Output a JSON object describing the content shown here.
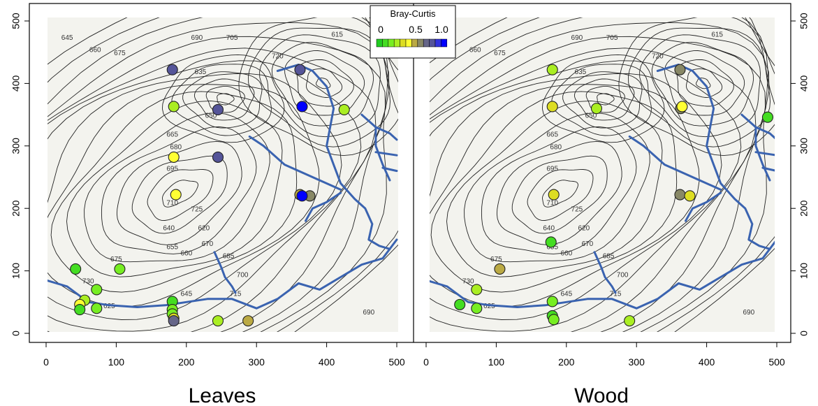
{
  "chart_data": {
    "type": "scatter",
    "legend": {
      "title": "Bray-Curtis",
      "min_label": "0",
      "mid_label": "0.5",
      "max_label": "1.0",
      "placement": "top-center",
      "colors": [
        "#22cc22",
        "#44dd22",
        "#77ee22",
        "#aaee22",
        "#dddd22",
        "#ffff33",
        "#bbaa44",
        "#888866",
        "#666688",
        "#555599",
        "#3333dd",
        "#0000ff"
      ]
    },
    "x_ticks": [
      "0",
      "100",
      "200",
      "300",
      "400",
      "500"
    ],
    "y_ticks": [
      "0",
      "100",
      "200",
      "300",
      "400",
      "500"
    ],
    "xlim": [
      0,
      500
    ],
    "ylim": [
      0,
      500
    ],
    "stream_color": "#3a63b0",
    "contour_labels": [
      "615",
      "620",
      "625",
      "635",
      "640",
      "645",
      "650",
      "655",
      "660",
      "665",
      "670",
      "675",
      "680",
      "685",
      "690",
      "695",
      "700",
      "705",
      "710",
      "715",
      "720",
      "725",
      "730"
    ],
    "panels": [
      {
        "title": "Leaves",
        "points": [
          {
            "x": 180,
            "y": 422,
            "v": 0.8
          },
          {
            "x": 362,
            "y": 422,
            "v": 0.8
          },
          {
            "x": 182,
            "y": 363,
            "v": 0.3
          },
          {
            "x": 245,
            "y": 358,
            "v": 0.8
          },
          {
            "x": 365,
            "y": 363,
            "v": 1.0
          },
          {
            "x": 425,
            "y": 358,
            "v": 0.25
          },
          {
            "x": 182,
            "y": 282,
            "v": 0.45
          },
          {
            "x": 245,
            "y": 282,
            "v": 0.8
          },
          {
            "x": 185,
            "y": 222,
            "v": 0.45
          },
          {
            "x": 362,
            "y": 222,
            "v": 0.55
          },
          {
            "x": 376,
            "y": 220,
            "v": 0.6
          },
          {
            "x": 365,
            "y": 220,
            "v": 1.0
          },
          {
            "x": 42,
            "y": 103,
            "v": 0.1
          },
          {
            "x": 105,
            "y": 103,
            "v": 0.2
          },
          {
            "x": 72,
            "y": 70,
            "v": 0.2
          },
          {
            "x": 55,
            "y": 53,
            "v": 0.3
          },
          {
            "x": 48,
            "y": 46,
            "v": 0.45
          },
          {
            "x": 48,
            "y": 38,
            "v": 0.1
          },
          {
            "x": 72,
            "y": 40,
            "v": 0.2
          },
          {
            "x": 180,
            "y": 51,
            "v": 0.1
          },
          {
            "x": 180,
            "y": 38,
            "v": 0.15
          },
          {
            "x": 180,
            "y": 31,
            "v": 0.2
          },
          {
            "x": 182,
            "y": 24,
            "v": 0.35
          },
          {
            "x": 182,
            "y": 20,
            "v": 0.7
          },
          {
            "x": 245,
            "y": 20,
            "v": 0.3
          },
          {
            "x": 288,
            "y": 20,
            "v": 0.55
          }
        ]
      },
      {
        "title": "Wood",
        "points": [
          {
            "x": 180,
            "y": 422,
            "v": 0.25
          },
          {
            "x": 362,
            "y": 422,
            "v": 0.6
          },
          {
            "x": 180,
            "y": 363,
            "v": 0.35
          },
          {
            "x": 243,
            "y": 360,
            "v": 0.3
          },
          {
            "x": 363,
            "y": 360,
            "v": 0.6
          },
          {
            "x": 365,
            "y": 363,
            "v": 0.45
          },
          {
            "x": 487,
            "y": 346,
            "v": 0.1
          },
          {
            "x": 182,
            "y": 222,
            "v": 0.4
          },
          {
            "x": 362,
            "y": 222,
            "v": 0.6
          },
          {
            "x": 376,
            "y": 220,
            "v": 0.4
          },
          {
            "x": 178,
            "y": 146,
            "v": 0.1
          },
          {
            "x": 105,
            "y": 103,
            "v": 0.5
          },
          {
            "x": 72,
            "y": 70,
            "v": 0.25
          },
          {
            "x": 48,
            "y": 46,
            "v": 0.1
          },
          {
            "x": 72,
            "y": 40,
            "v": 0.2
          },
          {
            "x": 180,
            "y": 51,
            "v": 0.2
          },
          {
            "x": 180,
            "y": 28,
            "v": 0.1
          },
          {
            "x": 182,
            "y": 22,
            "v": 0.2
          },
          {
            "x": 290,
            "y": 20,
            "v": 0.3
          }
        ]
      }
    ]
  }
}
